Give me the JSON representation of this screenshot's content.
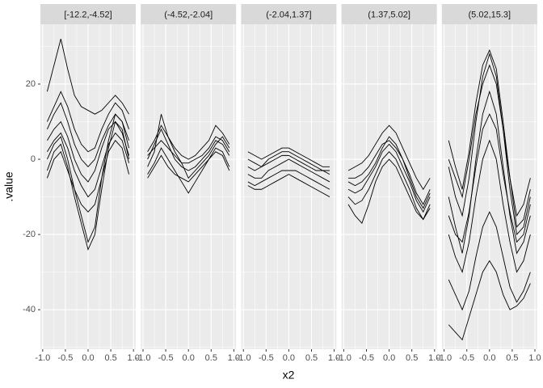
{
  "chart_data": {
    "type": "line",
    "x_label": "x2",
    "y_label": ".value",
    "color": "#000000",
    "grid": true,
    "xlim": [
      -1.05,
      1.05
    ],
    "ylim": [
      -50.5,
      35.9
    ],
    "xticks": [
      {
        "value": -1,
        "label": "-1.0"
      },
      {
        "value": -0.5,
        "label": "-0.5"
      },
      {
        "value": 0,
        "label": "0.0"
      },
      {
        "value": 0.5,
        "label": "0.5"
      },
      {
        "value": 1,
        "label": "1.0"
      }
    ],
    "yticks": [
      -40,
      -20,
      0,
      20
    ],
    "x": [
      -0.9,
      -0.75,
      -0.6,
      -0.45,
      -0.3,
      -0.15,
      0,
      0.15,
      0.3,
      0.45,
      0.6,
      0.75,
      0.9
    ],
    "panels": [
      {
        "label": "[-12.2,-4.52]",
        "series": [
          {
            "values": [
              5,
              8,
              10,
              6,
              0,
              -4,
              -6,
              -3,
              3,
              8,
              10,
              7,
              1
            ]
          },
          {
            "values": [
              18,
              25,
              32,
              24,
              17,
              14,
              13,
              12,
              13,
              15,
              17,
              15,
              12
            ]
          },
          {
            "values": [
              0,
              4,
              6,
              0,
              -8,
              -15,
              -22,
              -18,
              -5,
              5,
              12,
              10,
              3
            ]
          },
          {
            "values": [
              -3,
              2,
              4,
              -2,
              -10,
              -17,
              -24,
              -20,
              -8,
              3,
              10,
              8,
              0
            ]
          },
          {
            "values": [
              8,
              12,
              15,
              10,
              4,
              0,
              -2,
              0,
              5,
              9,
              12,
              10,
              5
            ]
          },
          {
            "values": [
              2,
              5,
              7,
              3,
              -3,
              -7,
              -10,
              -8,
              -2,
              4,
              7,
              5,
              -1
            ]
          },
          {
            "values": [
              -5,
              0,
              2,
              -3,
              -8,
              -12,
              -14,
              -12,
              -5,
              2,
              5,
              3,
              -4
            ]
          },
          {
            "values": [
              10,
              14,
              18,
              14,
              8,
              4,
              2,
              3,
              8,
              12,
              15,
              13,
              8
            ]
          }
        ]
      },
      {
        "label": "(-4.52,-2.04]",
        "series": [
          {
            "values": [
              0,
              4,
              8,
              4,
              0,
              -2,
              -3,
              -2,
              0,
              2,
              5,
              4,
              1
            ]
          },
          {
            "values": [
              -2,
              2,
              12,
              6,
              2,
              -1,
              -5,
              -3,
              -1,
              1,
              4,
              6,
              3
            ]
          },
          {
            "values": [
              1,
              3,
              5,
              3,
              1,
              -1,
              -1,
              0,
              1,
              3,
              6,
              5,
              2
            ]
          },
          {
            "values": [
              -4,
              -1,
              3,
              0,
              -3,
              -6,
              -9,
              -6,
              -3,
              0,
              3,
              2,
              -2
            ]
          },
          {
            "values": [
              2,
              5,
              9,
              6,
              3,
              1,
              0,
              1,
              3,
              5,
              9,
              7,
              4
            ]
          },
          {
            "values": [
              -5,
              -2,
              1,
              -2,
              -4,
              -5,
              -6,
              -4,
              -2,
              0,
              2,
              1,
              -3
            ]
          }
        ]
      },
      {
        "label": "(-2.04,1.37]",
        "series": [
          {
            "values": [
              -2,
              -3,
              -2,
              -1,
              0,
              1,
              1,
              0,
              -1,
              -2,
              -3,
              -3,
              -4
            ]
          },
          {
            "values": [
              -6,
              -7,
              -6,
              -5,
              -4,
              -3,
              -3,
              -3,
              -4,
              -5,
              -6,
              -7,
              -8
            ]
          },
          {
            "values": [
              2,
              1,
              0,
              1,
              2,
              3,
              3,
              2,
              1,
              0,
              -1,
              -2,
              -2
            ]
          },
          {
            "values": [
              -4,
              -5,
              -5,
              -3,
              -2,
              -1,
              0,
              -1,
              -2,
              -3,
              -4,
              -5,
              -6
            ]
          },
          {
            "values": [
              0,
              -1,
              -2,
              0,
              1,
              2,
              2,
              1,
              0,
              -1,
              -2,
              -3,
              -3
            ]
          },
          {
            "values": [
              -7,
              -8,
              -8,
              -7,
              -6,
              -5,
              -4,
              -5,
              -6,
              -7,
              -8,
              -9,
              -10
            ]
          }
        ]
      },
      {
        "label": "(1.37,5.02]",
        "series": [
          {
            "values": [
              -5,
              -5,
              -4,
              -2,
              1,
              4,
              5,
              3,
              0,
              -4,
              -9,
              -12,
              -8
            ]
          },
          {
            "values": [
              -8,
              -9,
              -8,
              -5,
              -2,
              2,
              4,
              2,
              -2,
              -6,
              -11,
              -14,
              -10
            ]
          },
          {
            "values": [
              -3,
              -2,
              -1,
              1,
              4,
              7,
              9,
              7,
              3,
              -1,
              -5,
              -8,
              -5
            ]
          },
          {
            "values": [
              -10,
              -12,
              -11,
              -8,
              -4,
              0,
              2,
              0,
              -4,
              -8,
              -13,
              -16,
              -12
            ]
          },
          {
            "values": [
              -12,
              -15,
              -17,
              -12,
              -6,
              -2,
              0,
              -2,
              -6,
              -10,
              -14,
              -16,
              -13
            ]
          },
          {
            "values": [
              -6,
              -7,
              -6,
              -4,
              -1,
              3,
              6,
              4,
              0,
              -5,
              -10,
              -13,
              -9
            ]
          }
        ]
      },
      {
        "label": "(5.02,15.3]",
        "series": [
          {
            "values": [
              -2,
              -10,
              -15,
              -5,
              10,
              22,
              28,
              22,
              8,
              -8,
              -20,
              -18,
              -10
            ]
          },
          {
            "values": [
              5,
              -2,
              -8,
              2,
              15,
              25,
              29,
              24,
              10,
              -5,
              -15,
              -12,
              -5
            ]
          },
          {
            "values": [
              -10,
              -18,
              -25,
              -15,
              0,
              12,
              18,
              12,
              -2,
              -15,
              -25,
              -22,
              -15
            ]
          },
          {
            "values": [
              -20,
              -26,
              -30,
              -22,
              -10,
              0,
              5,
              0,
              -12,
              -22,
              -30,
              -27,
              -20
            ]
          },
          {
            "values": [
              -32,
              -36,
              -40,
              -35,
              -26,
              -18,
              -14,
              -18,
              -26,
              -34,
              -38,
              -35,
              -30
            ]
          },
          {
            "values": [
              -44,
              -46,
              -48,
              -42,
              -36,
              -30,
              -27,
              -30,
              -36,
              -40,
              -39,
              -37,
              -33
            ]
          },
          {
            "values": [
              0,
              -5,
              -10,
              0,
              12,
              20,
              25,
              20,
              8,
              -5,
              -18,
              -16,
              -8
            ]
          },
          {
            "values": [
              -15,
              -20,
              -22,
              -14,
              -2,
              8,
              12,
              8,
              -4,
              -14,
              -22,
              -20,
              -12
            ]
          }
        ]
      }
    ]
  }
}
